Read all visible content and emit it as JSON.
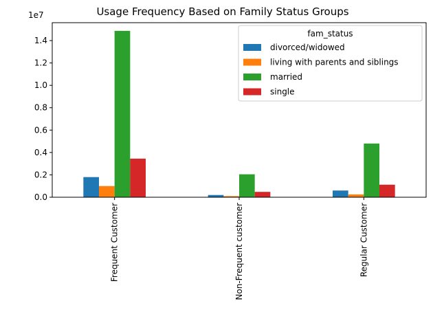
{
  "chart_data": {
    "type": "bar",
    "title": "Usage Frequency Based on Family Status Groups",
    "xlabel": "",
    "ylabel": "",
    "offset_label": "1e7",
    "categories": [
      "Frequent Customer",
      "Non-Frequent customer",
      "Regular Customer"
    ],
    "ylim": [
      0,
      15600000
    ],
    "yticks": [
      0,
      2000000,
      4000000,
      6000000,
      8000000,
      10000000,
      12000000,
      14000000
    ],
    "ytick_labels": [
      "0.0",
      "0.2",
      "0.4",
      "0.6",
      "0.8",
      "1.0",
      "1.2",
      "1.4"
    ],
    "grid": false,
    "legend": {
      "title": "fam_status",
      "placement": "top-right"
    },
    "series": [
      {
        "name": "divorced/widowed",
        "color": "#1f77b4",
        "values": [
          1800000,
          200000,
          600000
        ]
      },
      {
        "name": "living with parents and siblings",
        "color": "#ff7f0e",
        "values": [
          1000000,
          100000,
          250000
        ]
      },
      {
        "name": "married",
        "color": "#2ca02c",
        "values": [
          14870000,
          2050000,
          4800000
        ]
      },
      {
        "name": "single",
        "color": "#d62728",
        "values": [
          3450000,
          480000,
          1120000
        ]
      }
    ]
  }
}
